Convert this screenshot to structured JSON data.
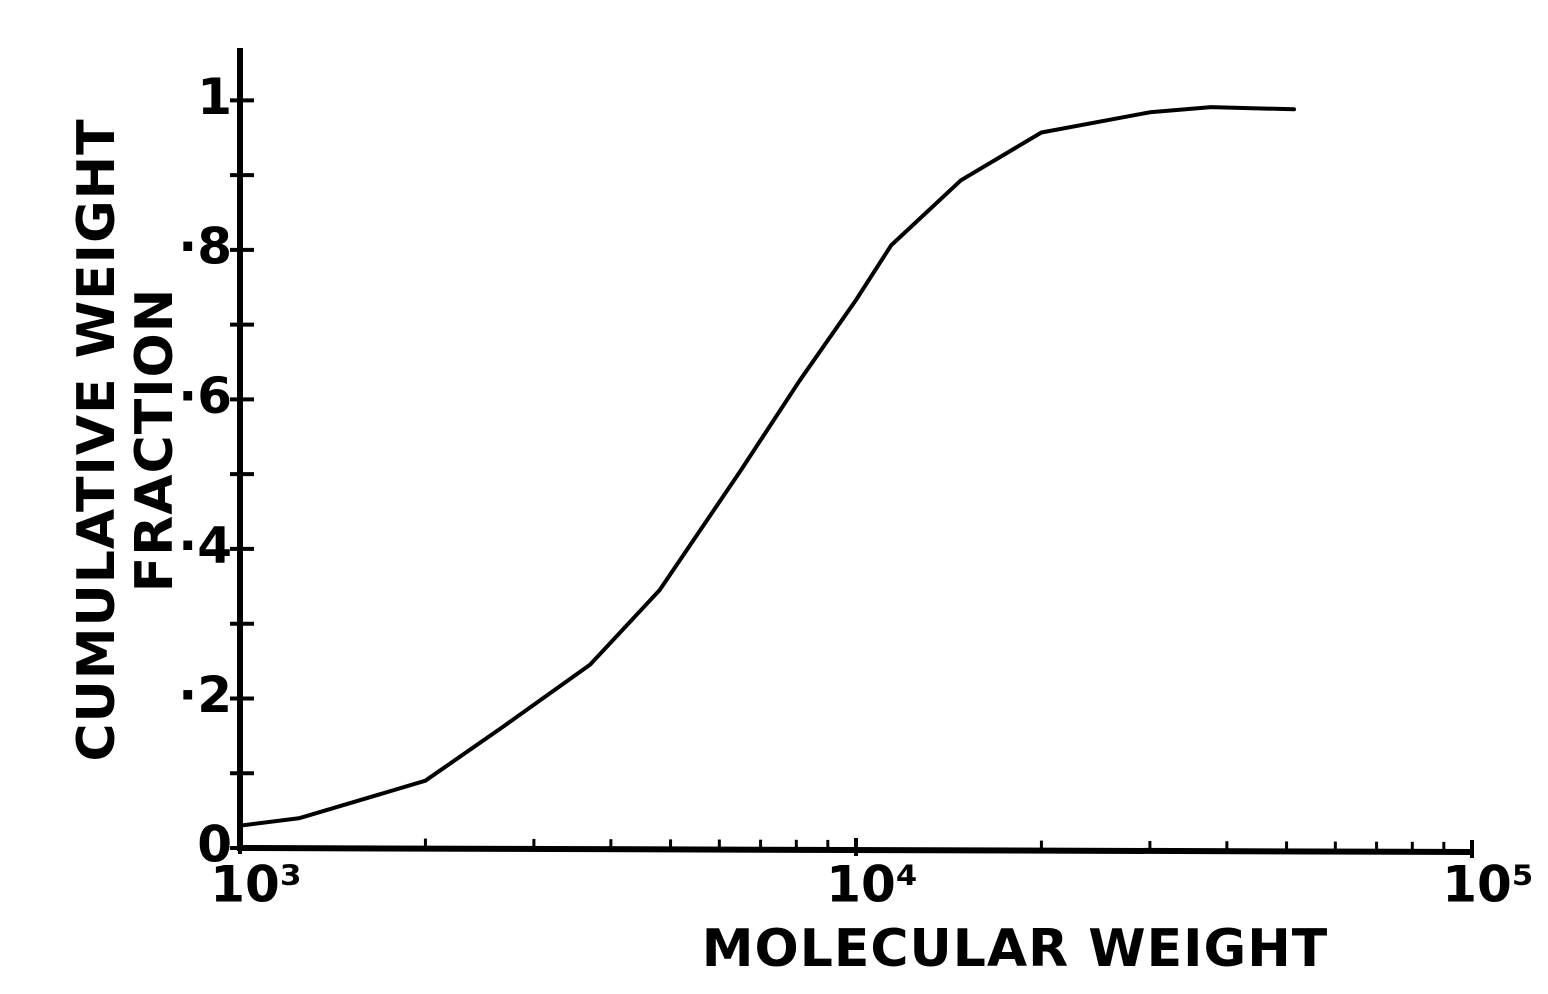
{
  "chart_data": {
    "type": "line",
    "xlabel": "MOLECULAR WEIGHT",
    "ylabel": [
      "CUMULATIVE WEIGHT",
      "FRACTION"
    ],
    "xscale": "log",
    "xlim": [
      1000,
      100000
    ],
    "ylim": [
      0,
      1.07
    ],
    "xticks": [
      {
        "value": 1000,
        "label": "10³"
      },
      {
        "value": 10000,
        "label": "10⁴"
      },
      {
        "value": 100000,
        "label": "10⁵"
      }
    ],
    "xminorticks": [
      2000,
      3000,
      4000,
      5000,
      6000,
      7000,
      8000,
      9000,
      20000,
      30000,
      40000,
      50000,
      60000,
      70000,
      80000,
      90000
    ],
    "yticks": [
      0,
      {
        "value": 0.2,
        "label": "·2"
      },
      {
        "value": 0.4,
        "label": "·4"
      },
      {
        "value": 0.6,
        "label": "·6"
      },
      {
        "value": 0.8,
        "label": "·8"
      },
      1
    ],
    "yminorticks": [
      0.1,
      0.3,
      0.5,
      0.7,
      0.9
    ],
    "color": "#000000",
    "x": [
      1000,
      1250,
      2000,
      2650,
      3700,
      4800,
      6500,
      8100,
      10000,
      11400,
      14800,
      20000,
      30000,
      37700,
      51400
    ],
    "values": [
      0.03,
      0.04,
      0.09,
      0.16,
      0.245,
      0.345,
      0.505,
      0.625,
      0.733,
      0.806,
      0.893,
      0.957,
      0.984,
      0.991,
      0.988
    ]
  }
}
